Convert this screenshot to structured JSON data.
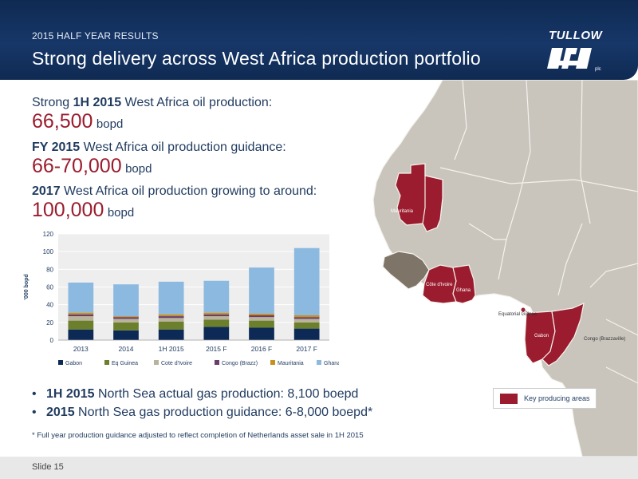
{
  "header": {
    "subtitle": "2015 HALF YEAR RESULTS",
    "title": "Strong delivery across West Africa production portfolio",
    "logo_text": "TULLOW",
    "logo_suffix": "plc"
  },
  "kpis": [
    {
      "prefix": "Strong ",
      "bold": "1H 2015",
      "suffix": " West Africa oil production:",
      "value": "66,500",
      "unit": "bopd"
    },
    {
      "prefix": "",
      "bold": "FY 2015",
      "suffix": " West Africa oil production guidance:",
      "value": "66-70,000",
      "unit": "bopd"
    },
    {
      "prefix": "",
      "bold": "2017",
      "suffix": " West Africa oil production growing to around:",
      "value": "100,000",
      "unit": "bopd"
    }
  ],
  "bullets": [
    {
      "bold": "1H 2015",
      "text": " North Sea actual gas production: 8,100 boepd"
    },
    {
      "bold": "2015",
      "text": " North Sea gas production guidance: 6-8,000 boepd*"
    }
  ],
  "footnote": "* Full year production guidance adjusted to reflect completion of Netherlands asset sale in 1H 2015",
  "map": {
    "labels": {
      "mauritania": "Mauritania",
      "cote_divoire": "Côte d'Ivoire",
      "ghana": "Ghana",
      "eq_guinea": "Equatorial Guinea",
      "gabon": "Gabon",
      "congo": "Congo (Brazzaville)"
    },
    "legend": "Key producing areas",
    "colors": {
      "highlight": "#9b1c2e",
      "land": "#c9c5bd",
      "sea": "#ffffff",
      "border": "#f5f3ee"
    }
  },
  "footer": {
    "slide": "Slide 15"
  },
  "chart_data": {
    "type": "bar",
    "stacked": true,
    "categories": [
      "2013",
      "2014",
      "1H 2015",
      "2015 F",
      "2016 F",
      "2017 F"
    ],
    "ylabel": "'000 bopd",
    "ylim": [
      0,
      120
    ],
    "yticks": [
      0,
      20,
      40,
      60,
      80,
      100,
      120
    ],
    "grid": true,
    "legend_position": "bottom",
    "series": [
      {
        "name": "Gabon",
        "color": "#0d2a56",
        "values": [
          12,
          11,
          12,
          15,
          14,
          13
        ]
      },
      {
        "name": "Eq Guinea",
        "color": "#6b7f2c",
        "values": [
          10,
          9,
          9,
          8,
          8,
          7
        ]
      },
      {
        "name": "Cote d'Ivoire",
        "color": "#b8b39a",
        "values": [
          5,
          4,
          4,
          4,
          4,
          4
        ]
      },
      {
        "name": "Congo (Brazz)",
        "color": "#6a3d6b",
        "values": [
          2,
          2,
          2,
          2,
          2,
          2
        ]
      },
      {
        "name": "Mauritania",
        "color": "#c7901f",
        "values": [
          2,
          1,
          2,
          2,
          2,
          2
        ]
      },
      {
        "name": "Ghana",
        "color": "#8cb9df",
        "values": [
          34,
          36,
          37,
          36,
          52,
          76
        ]
      }
    ]
  }
}
